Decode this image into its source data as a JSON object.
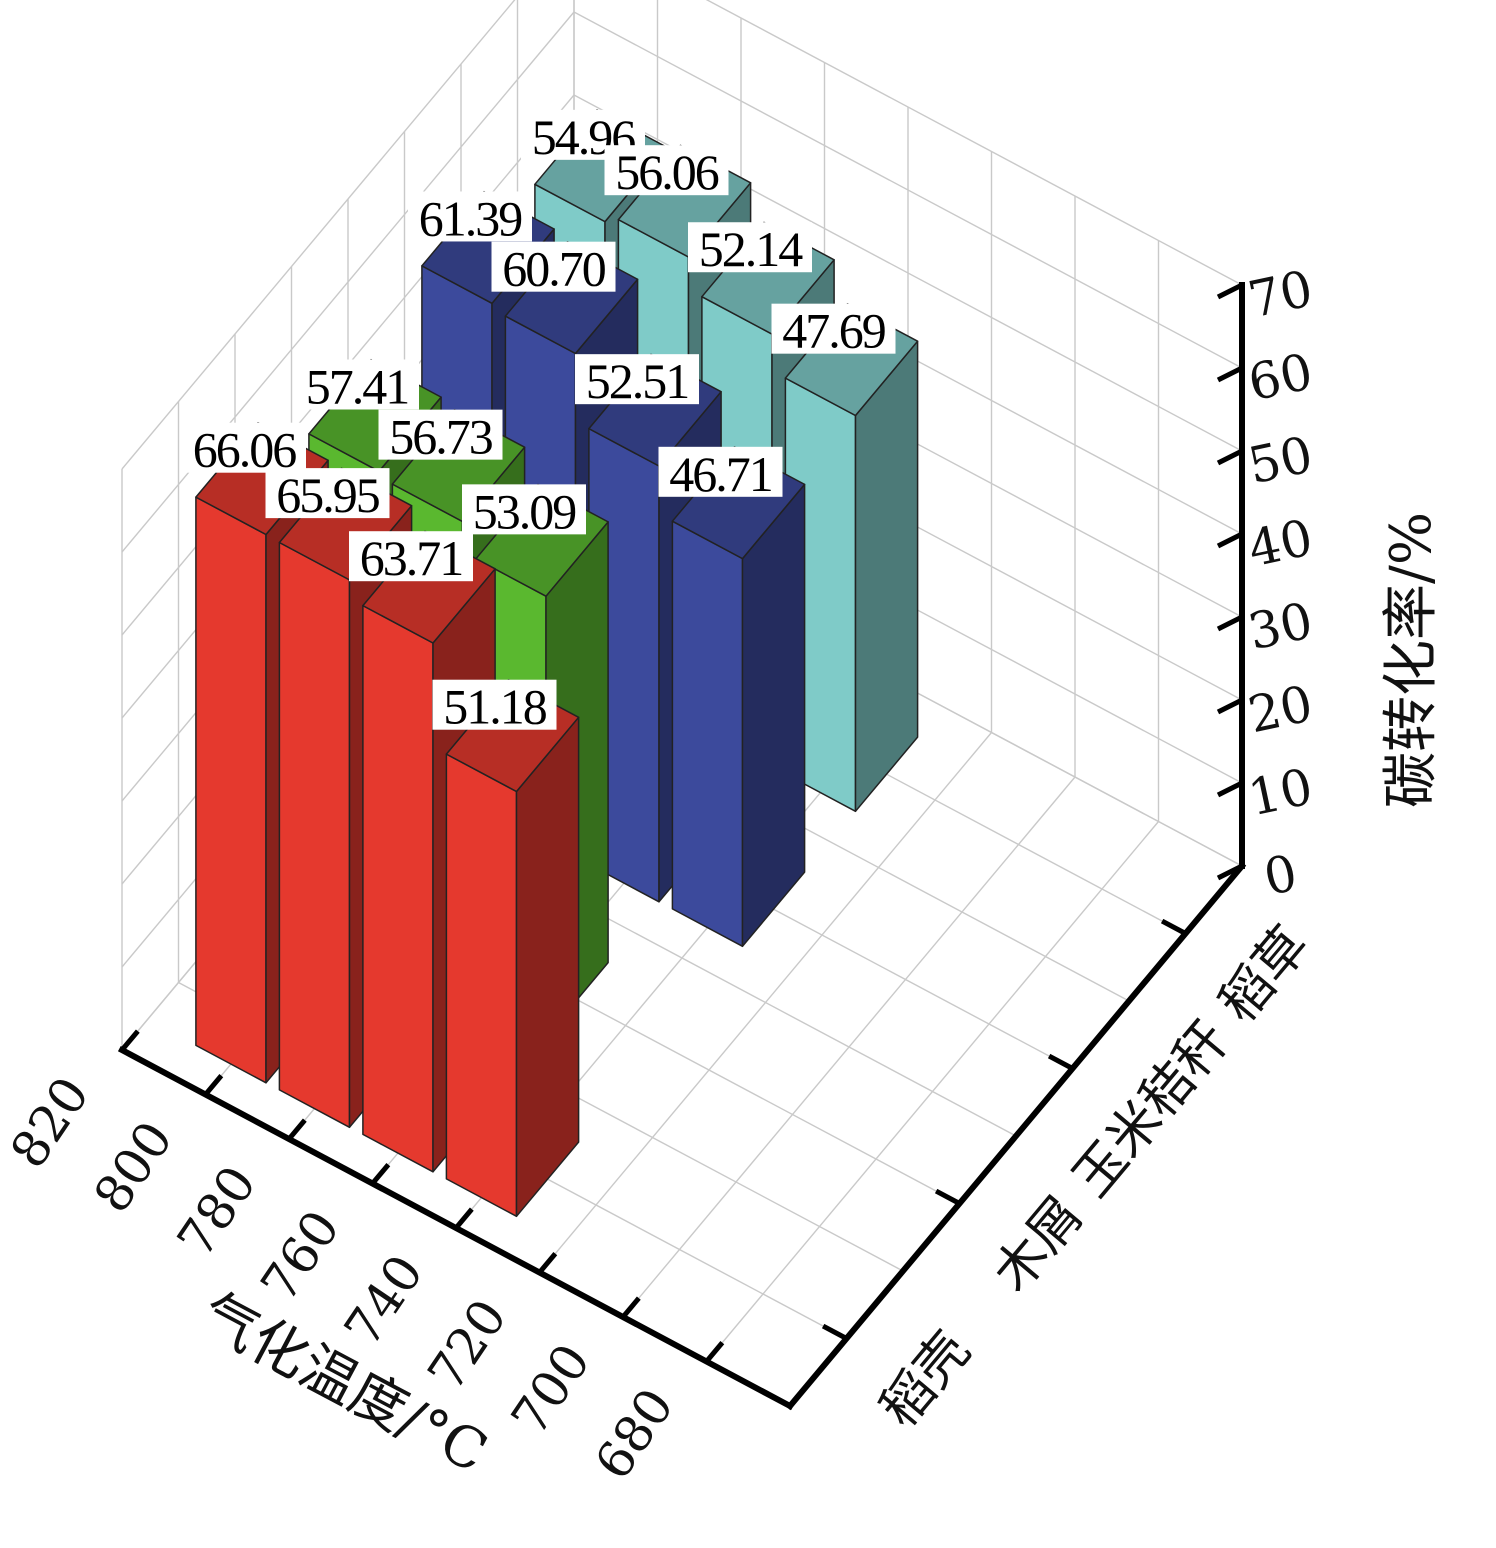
{
  "chart_data": {
    "type": "bar",
    "view": "3d",
    "xlabel": "气化温度/°C",
    "ylabel": "碳转化率/%",
    "x_ticks": [
      "820",
      "800",
      "780",
      "760",
      "740",
      "720",
      "700",
      "680"
    ],
    "z_ticks": [
      "0",
      "10",
      "20",
      "30",
      "40",
      "50",
      "60",
      "70"
    ],
    "zlim": [
      0,
      70
    ],
    "categories": [
      "稻壳",
      "木屑",
      "玉米秸秆",
      "稻草"
    ],
    "temperatures": [
      800,
      780,
      760,
      740
    ],
    "series": [
      {
        "name": "稻壳",
        "color": "#e5392e",
        "values": [
          66.06,
          65.95,
          63.71,
          51.18
        ]
      },
      {
        "name": "木屑",
        "color": "#5ab82f",
        "values": [
          57.41,
          56.73,
          53.09,
          null
        ]
      },
      {
        "name": "玉米秸秆",
        "color": "#3c4a9c",
        "values": [
          61.39,
          60.7,
          52.51,
          46.71
        ]
      },
      {
        "name": "稻草",
        "color": "#7fcbc8",
        "values": [
          54.96,
          56.06,
          52.14,
          47.69
        ]
      }
    ],
    "grid": true,
    "legend": "none"
  }
}
